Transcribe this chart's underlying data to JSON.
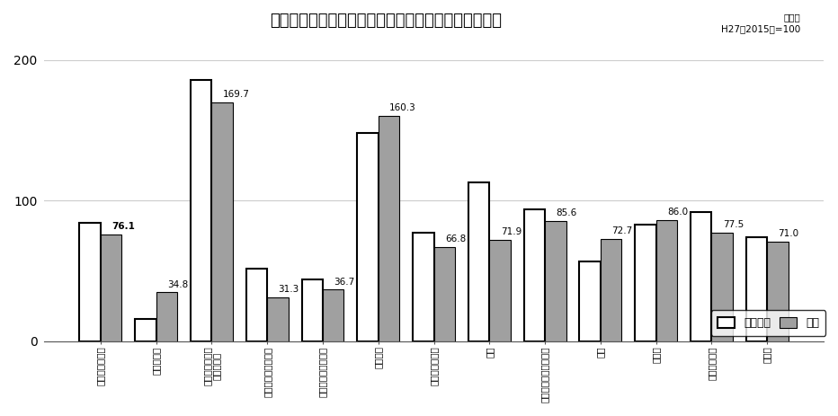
{
  "title": "業種別の生産指数（原指数）の当月と前年同月の比較",
  "subtitle": "原指数\nH27（2015）=100",
  "categories": [
    "鉱工業（総合）",
    "鉄鋼・金属",
    "汎用・生産用・\n業務用機械",
    "電子部品・デバイス",
    "電気・情報通信機械",
    "輸送機械",
    "窯業・土石製品",
    "化学",
    "パルプ・紙・紙加工品",
    "繊維",
    "食料品",
    "木材・木製品",
    "その他"
  ],
  "cat_display": [
    "鉱工業（総合）",
    "鉄鋼・金属",
    "汎用・生産用・業務用機械",
    "電子部品・デバイス",
    "電気・情報通信機械",
    "輸送機械",
    "窯業・土石製品",
    "化学",
    "パルプ・紙・紙加工品",
    "繊維",
    "食料品",
    "木材・木製品",
    "その他"
  ],
  "prev_year": [
    84.0,
    16.0,
    186.0,
    52.0,
    44.0,
    148.0,
    77.0,
    113.0,
    94.0,
    57.0,
    83.0,
    92.0,
    74.0
  ],
  "current": [
    76.1,
    34.8,
    169.7,
    31.3,
    36.7,
    160.3,
    66.8,
    71.9,
    85.6,
    72.7,
    86.0,
    77.5,
    71.0
  ],
  "label_bold_idx": 0,
  "bar_color_prev": "#ffffff",
  "bar_color_curr": "#a0a0a0",
  "bar_edge_color": "#000000",
  "ylim": [
    0,
    200
  ],
  "yticks": [
    0,
    100,
    200
  ],
  "legend_labels": [
    "前年同月",
    "当月"
  ],
  "background_color": "#ffffff",
  "grid_color": "#cccccc"
}
